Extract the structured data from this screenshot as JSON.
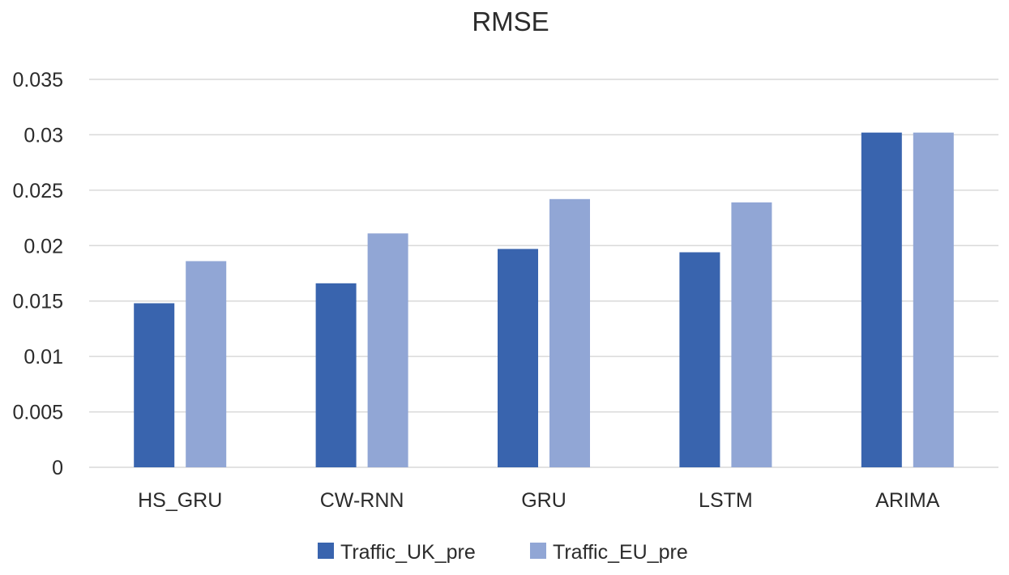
{
  "chart_data": {
    "type": "bar",
    "title": "RMSE",
    "categories": [
      "HS_GRU",
      "CW-RNN",
      "GRU",
      "LSTM",
      "ARIMA"
    ],
    "series": [
      {
        "name": "Traffic_UK_pre",
        "values": [
          0.0148,
          0.0166,
          0.0197,
          0.0194,
          0.0302
        ],
        "color": "#3964ae"
      },
      {
        "name": "Traffic_EU_pre",
        "values": [
          0.0186,
          0.0211,
          0.0242,
          0.0239,
          0.0302
        ],
        "color": "#91a6d5"
      }
    ],
    "yticks": [
      "0",
      "0.005",
      "0.01",
      "0.015",
      "0.02",
      "0.025",
      "0.03",
      "0.035"
    ],
    "ylim": [
      0,
      0.035
    ],
    "grid": true,
    "legend_position": "bottom-center",
    "xlabel": "",
    "ylabel": ""
  }
}
